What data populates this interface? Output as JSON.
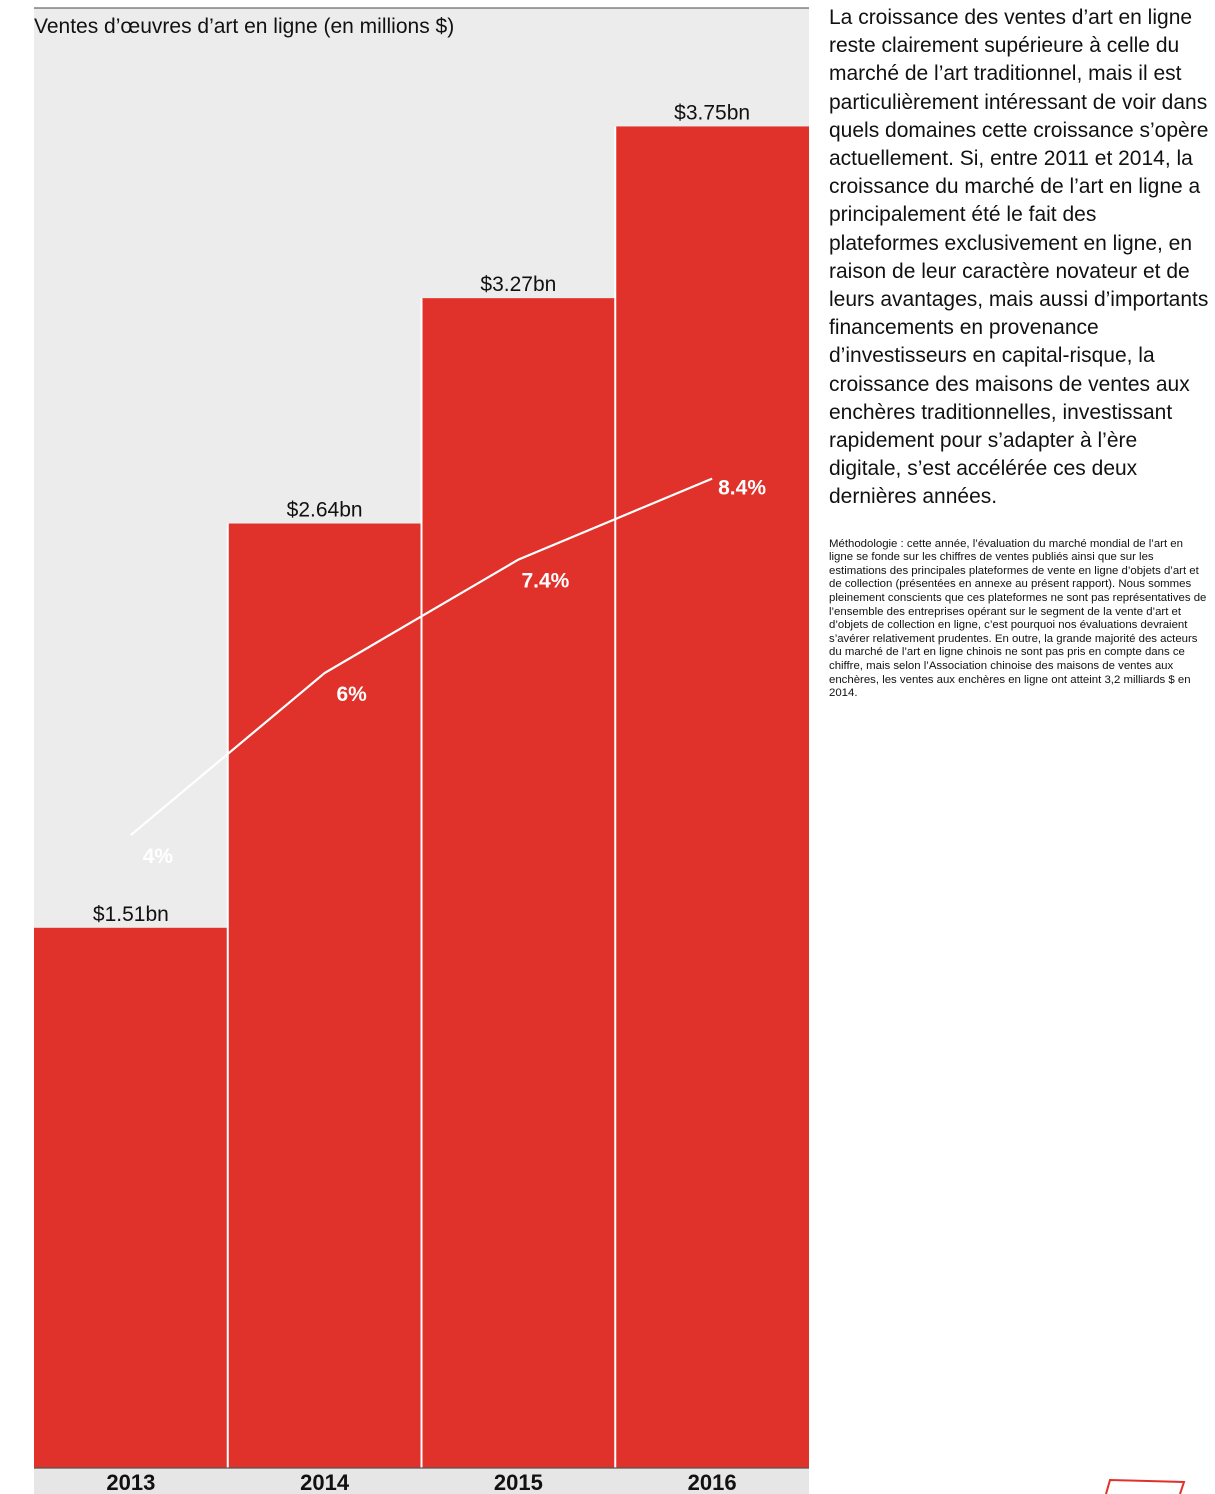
{
  "chart_data": {
    "type": "bar",
    "title": "Ventes d’œuvres d’art en ligne (en millions $)",
    "categories": [
      "2013",
      "2014",
      "2015",
      "2016"
    ],
    "series": [
      {
        "values": [
          1.51,
          2.64,
          3.27,
          3.75
        ],
        "value_labels": [
          "$1.51bn",
          "$2.64bn",
          "$3.27bn",
          "$3.75bn"
        ],
        "color": "#e0312a"
      },
      {
        "type": "line",
        "values": [
          4,
          6,
          7.4,
          8.4
        ],
        "value_labels": [
          "4%",
          "6%",
          "7.4%",
          "8.4%"
        ],
        "color": "#ffffff"
      }
    ],
    "ylim": [
      0,
      4.0
    ],
    "grid": false,
    "colors": {
      "bar": "#e0312a",
      "background": "#ececec",
      "line": "#ffffff"
    }
  },
  "text": {
    "lede": "La croissance des ventes d’art en ligne reste clairement supérieure à celle du marché de l’art traditionnel, mais il est particulièrement intéressant de voir dans quels domaines cette croissance s’opère actuellement. Si, entre 2011 et 2014, la croissance du marché de l’art en ligne a principalement été le fait des plateformes exclusivement en ligne, en raison de leur caractère novateur et de leurs avantages, mais aussi d’importants financements en provenance d’investisseurs en capital-risque, la croissance des maisons de ventes aux enchères traditionnelles, investissant rapidement pour s’adapter à l’ère digitale, s’est accélérée ces deux dernières années.",
    "methodology": "Méthodologie : cette année, l’évaluation du marché mondial de l’art en ligne se fonde sur les chiffres de ventes publiés ainsi que sur les estimations des principales plateformes de vente en ligne d’objets d’art et de collection (présentées en annexe au présent rapport). Nous sommes pleinement conscients que ces plateformes ne sont pas représentatives de l’ensemble des entreprises opérant sur le segment de la vente d’art et d’objets de collection en ligne, c’est pourquoi nos évaluations devraient s’avérer relativement prudentes. En outre, la grande majorité des acteurs du marché de l’art en ligne chinois ne sont pas pris en compte dans ce chiffre, mais selon l’Association chinoise des maisons de ventes aux enchères, les ventes aux enchères en ligne ont atteint 3,2 milliards $ en 2014."
  },
  "decor": {
    "corner_icon": "red-outline-shape-icon"
  }
}
